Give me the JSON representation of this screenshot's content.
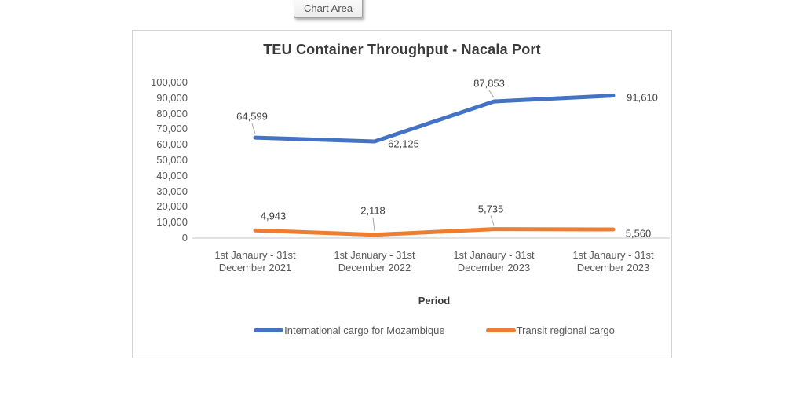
{
  "tooltip": {
    "label": "Chart Area"
  },
  "chart_data": {
    "type": "line",
    "title": "TEU Container Throughput - Nacala Port",
    "xlabel": "Period",
    "ylabel": "",
    "ylim": [
      0,
      100000
    ],
    "y_tick_step": 10000,
    "y_tick_labels": [
      "0",
      "10,000",
      "20,000",
      "30,000",
      "40,000",
      "50,000",
      "60,000",
      "70,000",
      "80,000",
      "90,000",
      "100,000"
    ],
    "grid": false,
    "legend_position": "bottom",
    "categories": [
      "1st Janaury - 31st December 2021",
      "1st January - 31st December 2022",
      "1st Janaury - 31st December 2023",
      "1st Janaury - 31st December 2023"
    ],
    "series": [
      {
        "name": "International cargo for Mozambique",
        "color": "#4472C4",
        "values": [
          64599,
          62125,
          87853,
          91610
        ],
        "data_labels": [
          "64,599",
          "62,125",
          "87,853",
          "91,610"
        ]
      },
      {
        "name": "Transit regional cargo",
        "color": "#ED7D31",
        "values": [
          4943,
          2118,
          5735,
          5560
        ],
        "data_labels": [
          "4,943",
          "2,118",
          "5,735",
          "5,560"
        ]
      }
    ],
    "colors": {
      "series1": "#4472C4",
      "series2": "#ED7D31",
      "axis_text": "#595959",
      "data_label_text": "#404040",
      "title_text": "#3B3B3B",
      "axis_line": "#D9D9D9",
      "leader_line": "#A6A6A6"
    }
  }
}
